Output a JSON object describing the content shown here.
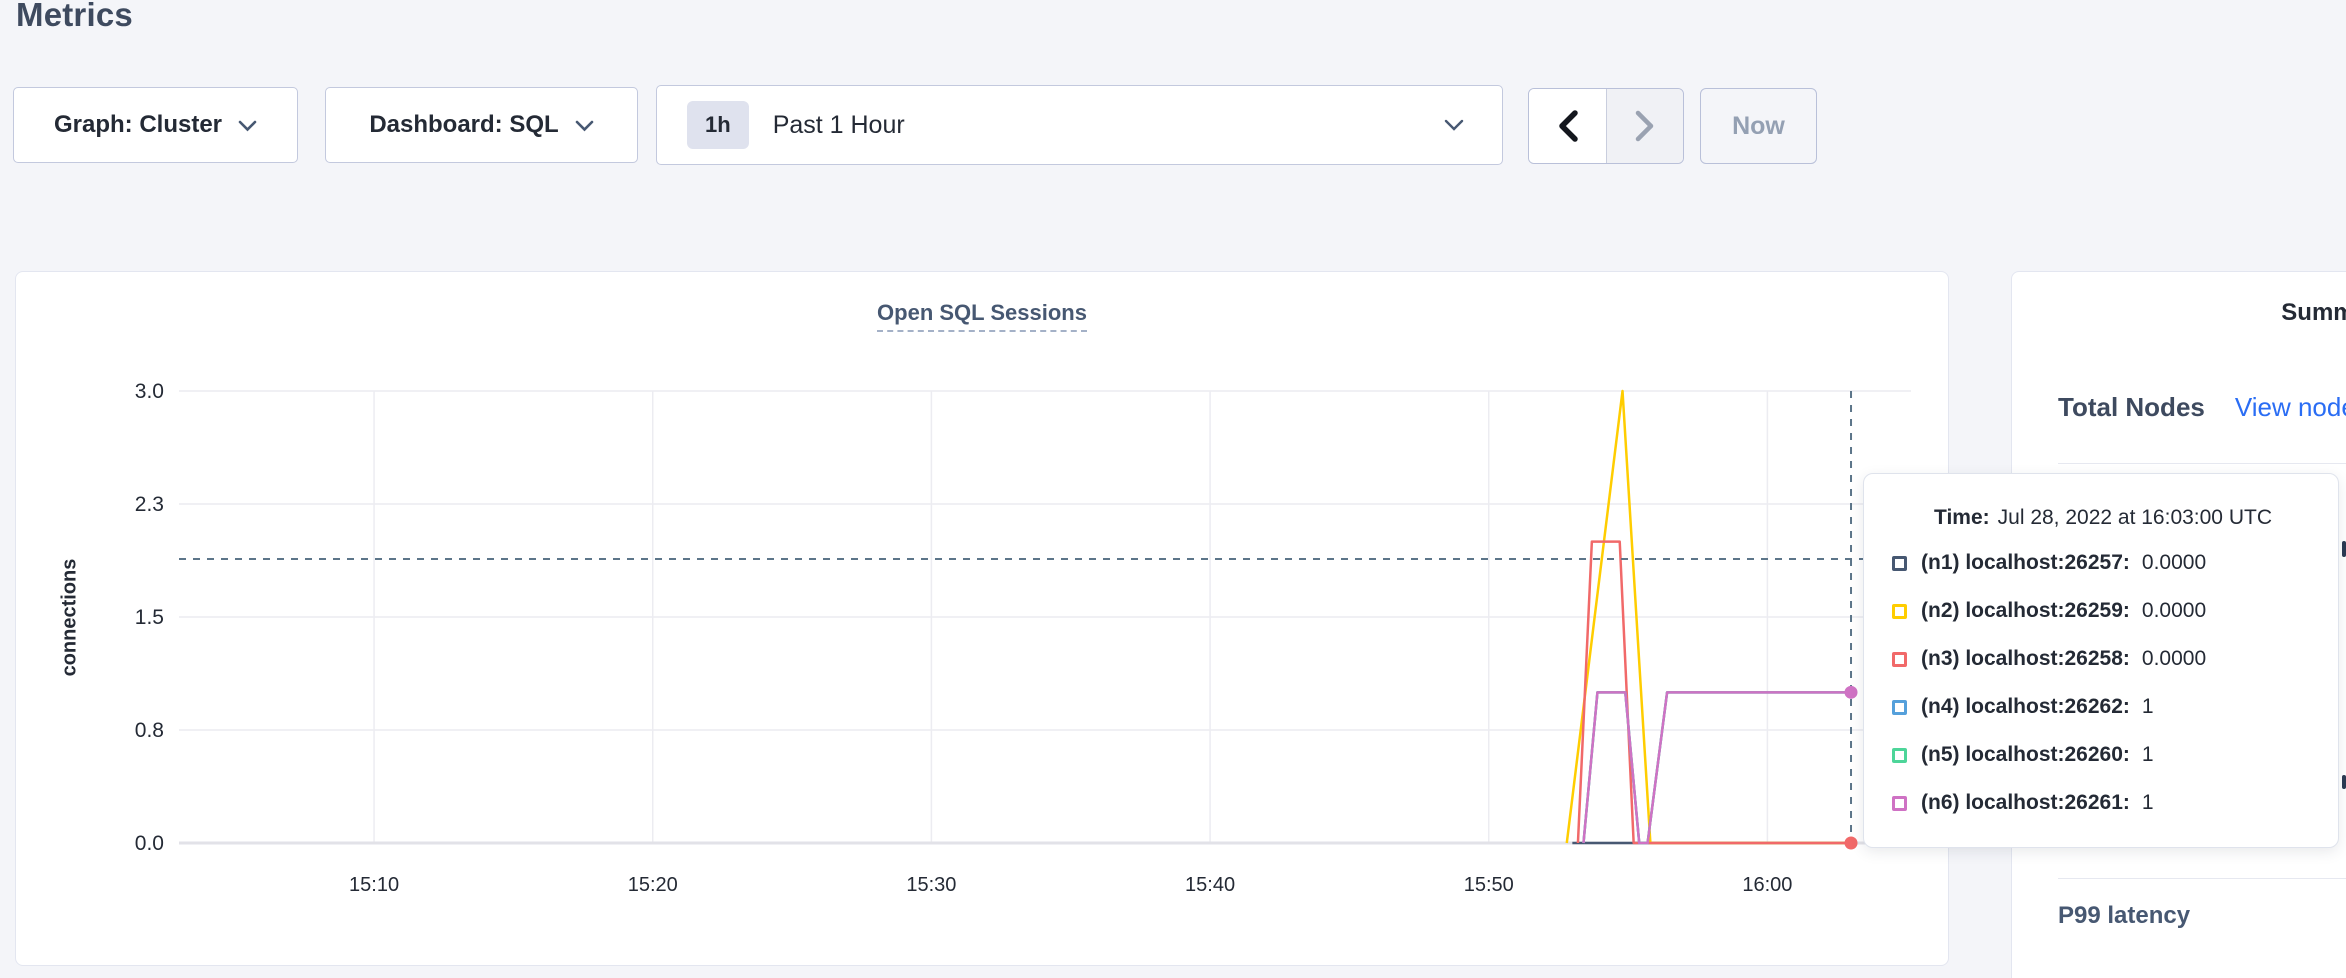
{
  "page_title": "Metrics",
  "toolbar": {
    "graph_dropdown": "Graph: Cluster",
    "dashboard_dropdown": "Dashboard: SQL",
    "time_window": {
      "badge": "1h",
      "label": "Past 1 Hour"
    },
    "prev_icon": "chevron-left",
    "next_icon": "chevron-right",
    "now_button": "Now"
  },
  "chart_data": {
    "type": "line",
    "title": "Open SQL Sessions",
    "ylabel": "connections",
    "xlabel": "",
    "x_window_labels": [
      "15:03",
      "16:03"
    ],
    "x_window_minutes": [
      3,
      63
    ],
    "ylim": [
      0,
      3
    ],
    "grid": true,
    "x_ticks": [
      {
        "m": 10,
        "label": "15:10"
      },
      {
        "m": 20,
        "label": "15:20"
      },
      {
        "m": 30,
        "label": "15:30"
      },
      {
        "m": 40,
        "label": "15:40"
      },
      {
        "m": 50,
        "label": "15:50"
      },
      {
        "m": 60,
        "label": "16:00"
      }
    ],
    "y_ticks": [
      {
        "v": 0,
        "label": "0.0"
      },
      {
        "v": 0.75,
        "label": "0.8"
      },
      {
        "v": 1.5,
        "label": "1.5"
      },
      {
        "v": 2.25,
        "label": "2.3"
      },
      {
        "v": 3,
        "label": "3.0"
      }
    ],
    "series": [
      {
        "name": "(n1) localhost:26257",
        "color": "#475872",
        "points": [
          [
            53.0,
            0
          ],
          [
            63,
            0
          ]
        ],
        "value_at_cursor": "0.0000",
        "end_dot": false
      },
      {
        "name": "(n2) localhost:26259",
        "color": "#ffcd00",
        "points": [
          [
            52.8,
            0
          ],
          [
            54.8,
            3
          ],
          [
            55.8,
            0
          ],
          [
            63,
            0
          ]
        ],
        "value_at_cursor": "0.0000",
        "end_dot": false
      },
      {
        "name": "(n3) localhost:26258",
        "color": "#f16969",
        "points": [
          [
            53.2,
            0
          ],
          [
            53.7,
            2
          ],
          [
            54.7,
            2
          ],
          [
            55.2,
            0
          ],
          [
            63,
            0
          ]
        ],
        "value_at_cursor": "0.0000",
        "end_dot": true
      },
      {
        "name": "(n4) localhost:26262",
        "color": "#55a0db",
        "points": [
          [
            53.4,
            0
          ],
          [
            53.9,
            1
          ],
          [
            54.9,
            1
          ],
          [
            55.4,
            0
          ],
          [
            55.7,
            0
          ],
          [
            56.4,
            1
          ],
          [
            63,
            1
          ]
        ],
        "value_at_cursor": "1",
        "end_dot": false
      },
      {
        "name": "(n5) localhost:26260",
        "color": "#4dd599",
        "points": [
          [
            53.4,
            0
          ],
          [
            53.9,
            1
          ],
          [
            54.9,
            1
          ],
          [
            55.4,
            0
          ],
          [
            55.7,
            0
          ],
          [
            56.4,
            1
          ],
          [
            63,
            1
          ]
        ],
        "value_at_cursor": "1",
        "end_dot": false
      },
      {
        "name": "(n6) localhost:26261",
        "color": "#cf72c4",
        "points": [
          [
            53.4,
            0
          ],
          [
            53.9,
            1
          ],
          [
            54.9,
            1
          ],
          [
            55.4,
            0
          ],
          [
            55.7,
            0
          ],
          [
            56.4,
            1
          ],
          [
            63,
            1
          ]
        ],
        "value_at_cursor": "1",
        "end_dot": true
      }
    ],
    "cursor": {
      "time_m": 63,
      "value": 1.885
    },
    "crosshair_color": "#5c7589",
    "grid_color": "#ececf1",
    "legend_position": "tooltip"
  },
  "tooltip": {
    "time_label": "Time:",
    "time_value": "Jul 28, 2022 at 16:03:00 UTC"
  },
  "sidebar": {
    "title": "Summary",
    "total_nodes_label": "Total Nodes",
    "view_nodes_link": "View nodes",
    "p99_label": "P99 latency"
  }
}
